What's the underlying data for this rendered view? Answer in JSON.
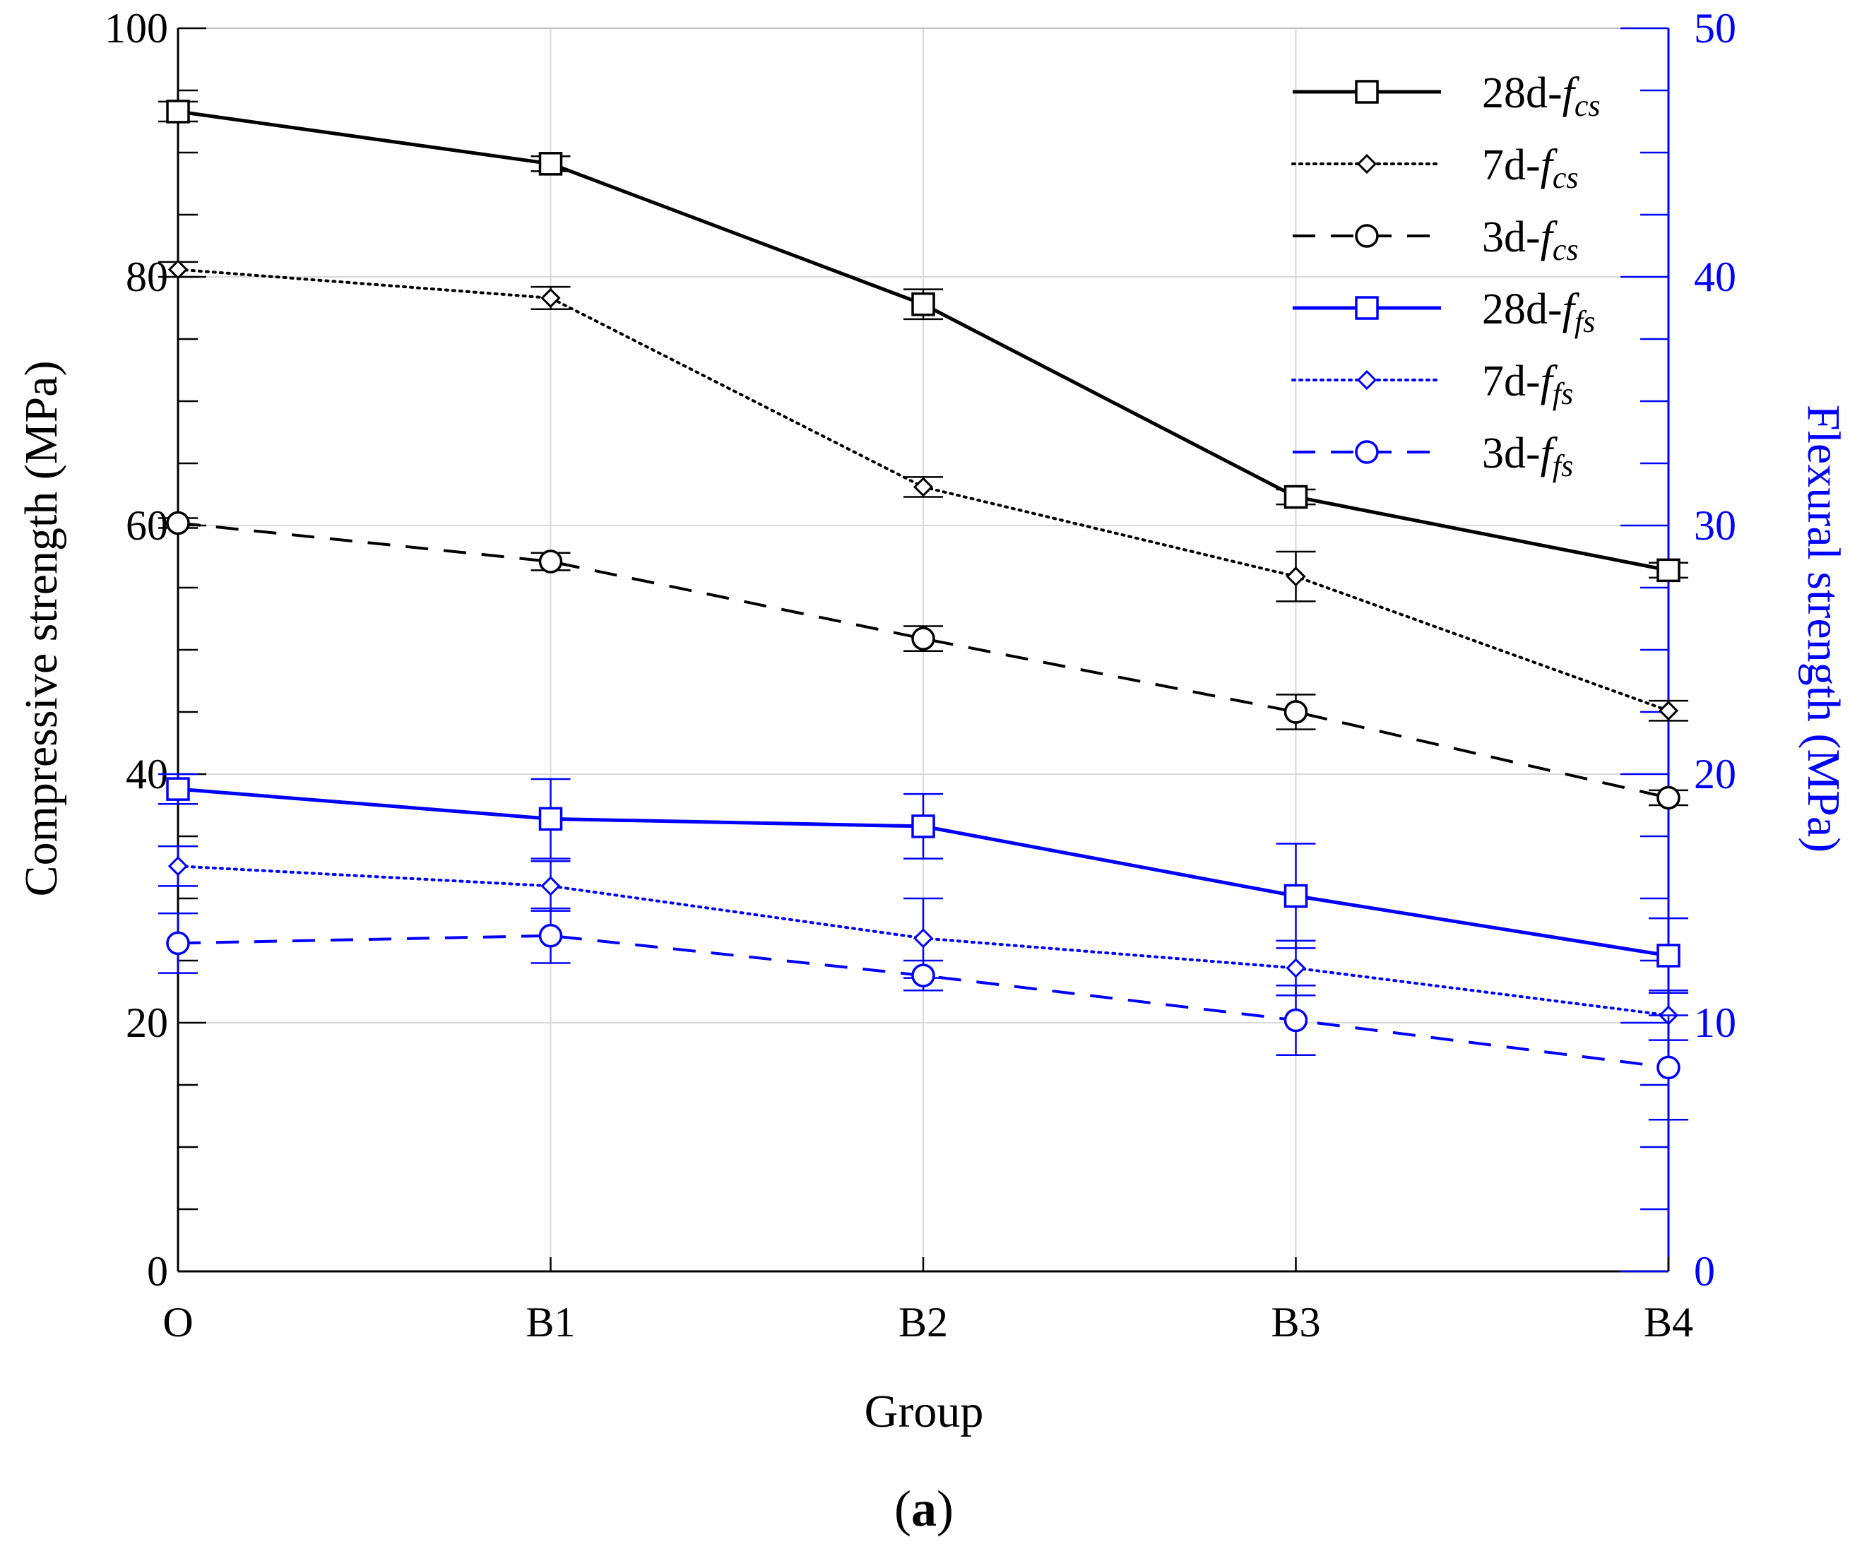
{
  "chart_data": {
    "type": "line",
    "categories": [
      "O",
      "B1",
      "B2",
      "B3",
      "B4"
    ],
    "xlabel": "Group",
    "ylabel": "Compressive strength (MPa)",
    "y2label": "Flexural strength (MPa)",
    "ylim": [
      0,
      100
    ],
    "y2lim": [
      0,
      50
    ],
    "yticks": [
      "0",
      "20",
      "40",
      "60",
      "80",
      "100"
    ],
    "y2ticks": [
      "0",
      "10",
      "20",
      "30",
      "40",
      "50"
    ],
    "grid": true,
    "legend_position": "top-right",
    "caption": {
      "open": "(",
      "label": "a",
      "close": ")"
    },
    "colors": {
      "cs": "#000000",
      "fs": "#0000ff",
      "grid": "#d9d9d9"
    },
    "series": [
      {
        "name": "28d-fcs",
        "prefix": "28d-",
        "sym": "f",
        "sub": "cs",
        "axis": "left",
        "color": "#000000",
        "dash": "solid",
        "marker": "square",
        "values": [
          93.3,
          89.1,
          77.8,
          62.3,
          56.4
        ],
        "errors": [
          0.8,
          0.6,
          1.2,
          0.6,
          0.6
        ]
      },
      {
        "name": "7d-fcs",
        "prefix": "7d-",
        "sym": "f",
        "sub": "cs",
        "axis": "left",
        "color": "#000000",
        "dash": "dotted",
        "marker": "diamond",
        "values": [
          80.6,
          78.3,
          63.1,
          55.9,
          45.1
        ],
        "errors": [
          0.6,
          0.9,
          0.8,
          2.0,
          0.8
        ]
      },
      {
        "name": "3d-fcs",
        "prefix": "3d-",
        "sym": "f",
        "sub": "cs",
        "axis": "left",
        "color": "#000000",
        "dash": "dashed",
        "marker": "circle",
        "values": [
          60.2,
          57.1,
          50.9,
          45.0,
          38.1
        ],
        "errors": [
          0.4,
          0.7,
          1.0,
          1.4,
          0.6
        ]
      },
      {
        "name": "28d-ffs",
        "prefix": "28d-",
        "sym": "f",
        "sub": "fs",
        "axis": "right",
        "color": "#0000ff",
        "dash": "solid",
        "marker": "square",
        "values": [
          19.4,
          18.2,
          17.9,
          15.1,
          12.7
        ],
        "errors": [
          0.6,
          1.6,
          1.3,
          2.1,
          1.5
        ]
      },
      {
        "name": "7d-ffs",
        "prefix": "7d-",
        "sym": "f",
        "sub": "fs",
        "axis": "right",
        "color": "#0000ff",
        "dash": "dotted",
        "marker": "diamond",
        "values": [
          16.3,
          15.5,
          13.4,
          12.2,
          10.3
        ],
        "errors": [
          0.8,
          1.0,
          1.6,
          1.1,
          1.0
        ]
      },
      {
        "name": "3d-ffs",
        "prefix": "3d-",
        "sym": "f",
        "sub": "fs",
        "axis": "right",
        "color": "#0000ff",
        "dash": "dashed",
        "marker": "circle",
        "values": [
          13.2,
          13.5,
          11.9,
          10.1,
          8.2
        ],
        "errors": [
          1.2,
          1.1,
          0.6,
          1.4,
          2.1
        ]
      }
    ]
  }
}
